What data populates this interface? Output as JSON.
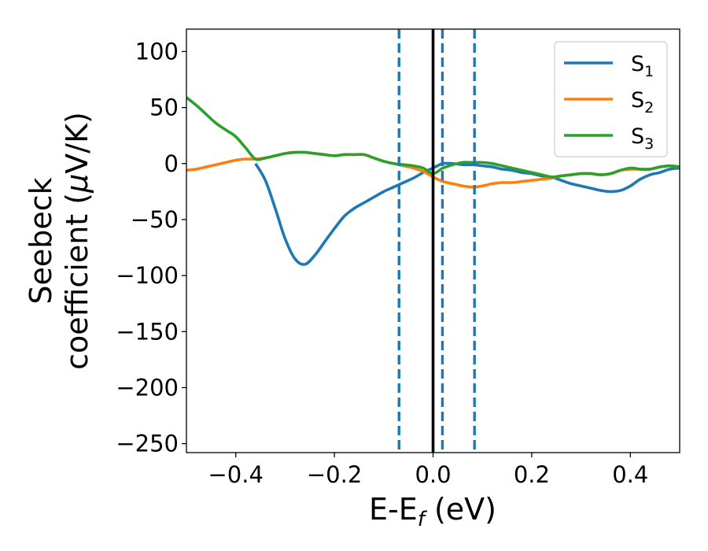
{
  "chart_data": {
    "type": "line",
    "xlabel": "E-E",
    "xlabel_sub": "f",
    "xlabel_unit": " (eV)",
    "ylabel_line1": "Seebeck",
    "ylabel_line2": "coefficient  (",
    "ylabel_mu": "μ",
    "ylabel_unit": "V/K)",
    "xlim": [
      -0.5,
      0.5
    ],
    "ylim": [
      -258,
      120
    ],
    "xticks": [
      -0.4,
      -0.2,
      0.0,
      0.2,
      0.4
    ],
    "xtick_labels": [
      "−0.4",
      "−0.2",
      "0.0",
      "0.2",
      "0.4"
    ],
    "yticks": [
      100,
      50,
      0,
      -50,
      -100,
      -150,
      -200,
      -250
    ],
    "ytick_labels": [
      "100",
      "50",
      "0",
      "−50",
      "−100",
      "−150",
      "−200",
      "−250"
    ],
    "legend_position": "top-right",
    "vlines": [
      {
        "x": -0.069,
        "color": "#1f77b4",
        "style": "dashed"
      },
      {
        "x": 0.0,
        "color": "#000000",
        "style": "solid"
      },
      {
        "x": 0.019,
        "color": "#1f77b4",
        "style": "dashed"
      },
      {
        "x": 0.084,
        "color": "#1f77b4",
        "style": "dashed"
      }
    ],
    "series": [
      {
        "name": "S",
        "sub": "1",
        "color": "#1f77b4",
        "x": [
          -0.36,
          -0.34,
          -0.32,
          -0.3,
          -0.28,
          -0.26,
          -0.24,
          -0.22,
          -0.2,
          -0.18,
          -0.16,
          -0.14,
          -0.12,
          -0.1,
          -0.08,
          -0.06,
          -0.04,
          -0.02,
          0.0,
          0.02,
          0.04,
          0.06,
          0.08,
          0.1,
          0.12,
          0.14,
          0.16,
          0.18,
          0.2,
          0.22,
          0.24,
          0.26,
          0.28,
          0.3,
          0.32,
          0.34,
          0.36,
          0.38,
          0.4,
          0.42,
          0.44,
          0.46,
          0.48,
          0.5
        ],
        "y": [
          0,
          -15,
          -40,
          -67,
          -85,
          -90,
          -82,
          -70,
          -58,
          -47,
          -40,
          -35,
          -30,
          -25,
          -21,
          -17,
          -13,
          -8,
          -4,
          0,
          0,
          -1,
          -1,
          -2,
          -3,
          -5,
          -6,
          -8,
          -9,
          -11,
          -12,
          -15,
          -18,
          -20,
          -22,
          -24,
          -25,
          -24,
          -20,
          -14,
          -10,
          -8,
          -5,
          -4
        ]
      },
      {
        "name": "S",
        "sub": "2",
        "color": "#ff7f0e",
        "x": [
          -0.5,
          -0.48,
          -0.46,
          -0.44,
          -0.42,
          -0.4,
          -0.38,
          -0.36,
          -0.34,
          -0.32,
          -0.3,
          -0.28,
          -0.26,
          -0.24,
          -0.22,
          -0.2,
          -0.18,
          -0.16,
          -0.14,
          -0.12,
          -0.1,
          -0.08,
          -0.06,
          -0.04,
          -0.02,
          0.0,
          0.02,
          0.04,
          0.06,
          0.08,
          0.1,
          0.12,
          0.14,
          0.16,
          0.18,
          0.2,
          0.22,
          0.24,
          0.26,
          0.28,
          0.3,
          0.32,
          0.34,
          0.36,
          0.38,
          0.4,
          0.42,
          0.44,
          0.46,
          0.48,
          0.5
        ],
        "y": [
          -6,
          -5,
          -3,
          -1,
          1,
          3,
          4,
          4,
          5,
          7,
          9,
          10,
          10,
          9,
          8,
          7,
          8,
          8,
          8,
          5,
          2,
          0,
          -2,
          -4,
          -7,
          -12,
          -16,
          -18,
          -20,
          -21,
          -20,
          -18,
          -17,
          -17,
          -16,
          -15,
          -14,
          -13,
          -11,
          -10,
          -9,
          -9,
          -10,
          -9,
          -6,
          -5,
          -5,
          -5,
          -3,
          -2,
          -3
        ]
      },
      {
        "name": "S",
        "sub": "3",
        "color": "#2ca02c",
        "x": [
          -0.5,
          -0.48,
          -0.46,
          -0.44,
          -0.42,
          -0.4,
          -0.38,
          -0.36,
          -0.34,
          -0.32,
          -0.3,
          -0.28,
          -0.26,
          -0.24,
          -0.22,
          -0.2,
          -0.18,
          -0.16,
          -0.14,
          -0.12,
          -0.1,
          -0.08,
          -0.06,
          -0.04,
          -0.02,
          0.0,
          0.02,
          0.04,
          0.06,
          0.08,
          0.1,
          0.12,
          0.14,
          0.16,
          0.18,
          0.2,
          0.22,
          0.24,
          0.26,
          0.28,
          0.3,
          0.32,
          0.34,
          0.36,
          0.38,
          0.4,
          0.42,
          0.44,
          0.46,
          0.48,
          0.5
        ],
        "y": [
          59,
          52,
          44,
          36,
          30,
          24,
          14,
          4,
          5,
          7,
          9,
          10,
          10,
          9,
          8,
          7,
          8,
          8,
          8,
          5,
          2,
          0,
          -1,
          -2,
          -4,
          -9,
          -4,
          -1,
          1,
          1,
          1,
          0,
          -2,
          -4,
          -6,
          -8,
          -10,
          -12,
          -11,
          -10,
          -9,
          -9,
          -10,
          -9,
          -6,
          -4,
          -5,
          -5,
          -3,
          -2,
          -3
        ]
      }
    ]
  }
}
